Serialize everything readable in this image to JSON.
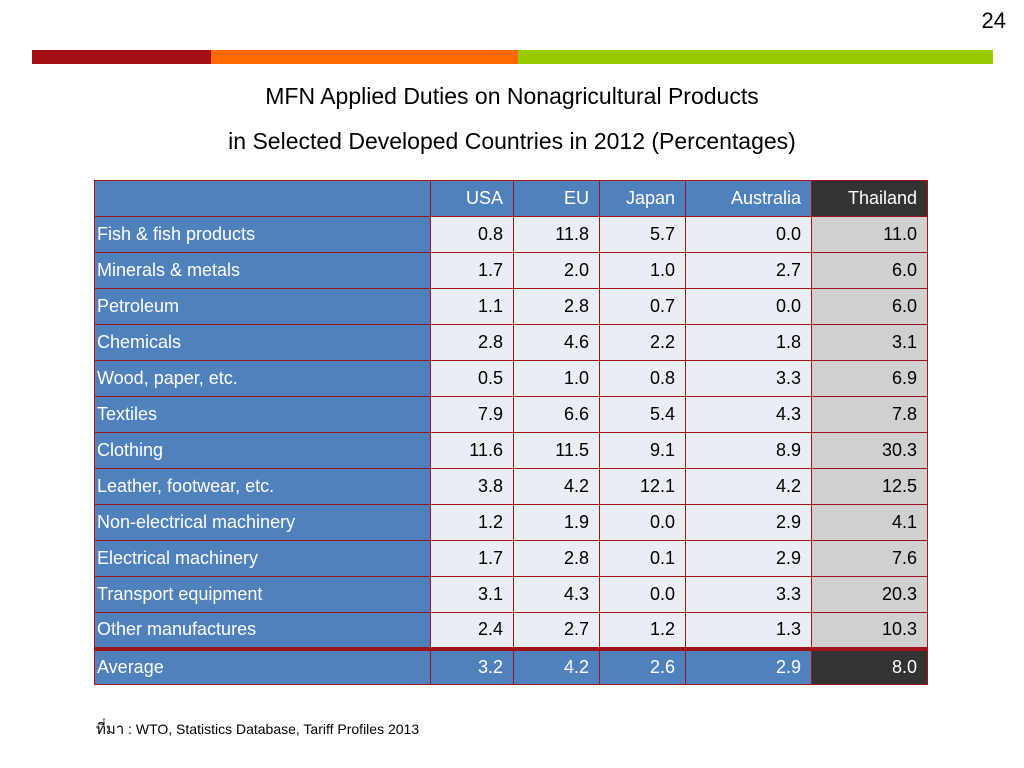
{
  "page_number": "24",
  "colors": {
    "bar_segment_1": "#a50f15",
    "bar_segment_2": "#ff6a00",
    "bar_segment_3": "#99cc00",
    "header_blue": "#4f81bd",
    "highlight_dark": "#333333",
    "border_red": "#a0141c"
  },
  "title": {
    "line1": "MFN Applied Duties on Nonagricultural Products",
    "line2": "in Selected Developed Countries in 2012 (Percentages)"
  },
  "table": {
    "headers": [
      "",
      "USA",
      "EU",
      "Japan",
      "Australia",
      "Thailand"
    ],
    "rows": [
      {
        "label": "Fish & fish products",
        "values": [
          "0.8",
          "11.8",
          "5.7",
          "0.0",
          "11.0"
        ]
      },
      {
        "label": "Minerals & metals",
        "values": [
          "1.7",
          "2.0",
          "1.0",
          "2.7",
          "6.0"
        ]
      },
      {
        "label": "Petroleum",
        "values": [
          "1.1",
          "2.8",
          "0.7",
          "0.0",
          "6.0"
        ]
      },
      {
        "label": "Chemicals",
        "values": [
          "2.8",
          "4.6",
          "2.2",
          "1.8",
          "3.1"
        ]
      },
      {
        "label": "Wood, paper, etc.",
        "values": [
          "0.5",
          "1.0",
          "0.8",
          "3.3",
          "6.9"
        ]
      },
      {
        "label": "Textiles",
        "values": [
          "7.9",
          "6.6",
          "5.4",
          "4.3",
          "7.8"
        ]
      },
      {
        "label": "Clothing",
        "values": [
          "11.6",
          "11.5",
          "9.1",
          "8.9",
          "30.3"
        ]
      },
      {
        "label": "Leather, footwear, etc.",
        "values": [
          "3.8",
          "4.2",
          "12.1",
          "4.2",
          "12.5"
        ]
      },
      {
        "label": "Non-electrical machinery",
        "values": [
          "1.2",
          "1.9",
          "0.0",
          "2.9",
          "4.1"
        ]
      },
      {
        "label": "Electrical machinery",
        "values": [
          "1.7",
          "2.8",
          "0.1",
          "2.9",
          "7.6"
        ]
      },
      {
        "label": "Transport equipment",
        "values": [
          "3.1",
          "4.3",
          "0.0",
          "3.3",
          "20.3"
        ]
      },
      {
        "label": "Other manufactures",
        "values": [
          "2.4",
          "2.7",
          "1.2",
          "1.3",
          "10.3"
        ]
      }
    ],
    "average": {
      "label": "Average",
      "values": [
        "3.2",
        "4.2",
        "2.6",
        "2.9",
        "8.0"
      ]
    }
  },
  "source": {
    "label": "ที่มา",
    "text": " : WTO, Statistics Database, Tariff Profiles 2013"
  }
}
